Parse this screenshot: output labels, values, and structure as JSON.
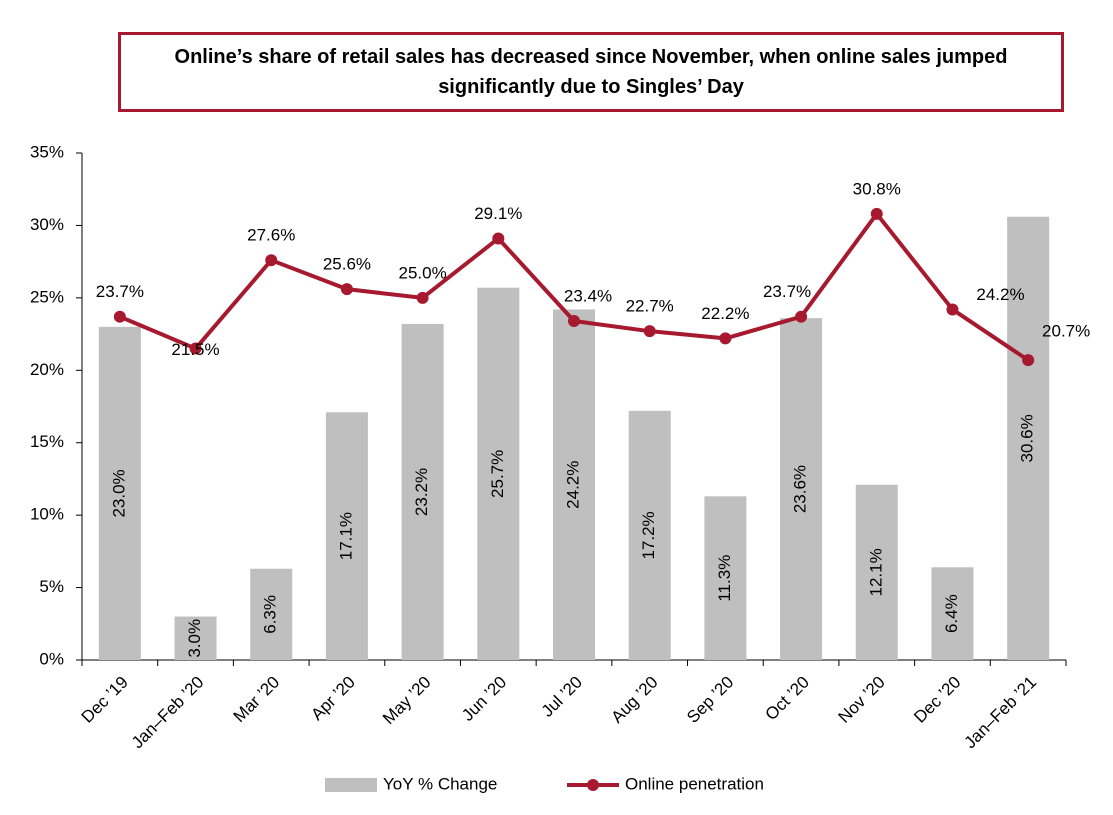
{
  "chart_data": {
    "type": "combo",
    "title": "Online’s share of retail sales has decreased since November, when online sales jumped significantly due to Singles’ Day",
    "categories": [
      "Dec ’19",
      "Jan–Feb ’20",
      "Mar ’20",
      "Apr ’20",
      "May ’20",
      "Jun ’20",
      "Jul ’20",
      "Aug ’20",
      "Sep ’20",
      "Oct ’20",
      "Nov ’20",
      "Dec ’20",
      "Jan–Feb ’21"
    ],
    "series": [
      {
        "name": "YoY % Change",
        "type": "bar",
        "color": "#bfbfbf",
        "values": [
          23.0,
          3.0,
          6.3,
          17.1,
          23.2,
          25.7,
          24.2,
          17.2,
          11.3,
          23.6,
          12.1,
          6.4,
          30.6
        ],
        "value_labels": [
          "23.0%",
          "3.0%",
          "6.3%",
          "17.1%",
          "23.2%",
          "25.7%",
          "24.2%",
          "17.2%",
          "11.3%",
          "23.6%",
          "12.1%",
          "6.4%",
          "30.6%"
        ]
      },
      {
        "name": "Online penetration",
        "type": "line",
        "color": "#a6192e",
        "values": [
          23.7,
          21.5,
          27.6,
          25.6,
          25.0,
          29.1,
          23.4,
          22.7,
          22.2,
          23.7,
          30.8,
          24.2,
          20.7
        ],
        "value_labels": [
          "23.7%",
          "21.5%",
          "27.6%",
          "25.6%",
          "25.0%",
          "29.1%",
          "23.4%",
          "22.7%",
          "22.2%",
          "23.7%",
          "30.8%",
          "24.2%",
          "20.7%"
        ]
      }
    ],
    "ylim": [
      0,
      35
    ],
    "yticks": [
      {
        "value": 0,
        "label": "0%"
      },
      {
        "value": 5,
        "label": "5%"
      },
      {
        "value": 10,
        "label": "10%"
      },
      {
        "value": 15,
        "label": "15%"
      },
      {
        "value": 20,
        "label": "20%"
      },
      {
        "value": 25,
        "label": "25%"
      },
      {
        "value": 30,
        "label": "30%"
      },
      {
        "value": 35,
        "label": "35%"
      }
    ],
    "legend": "bottom"
  }
}
